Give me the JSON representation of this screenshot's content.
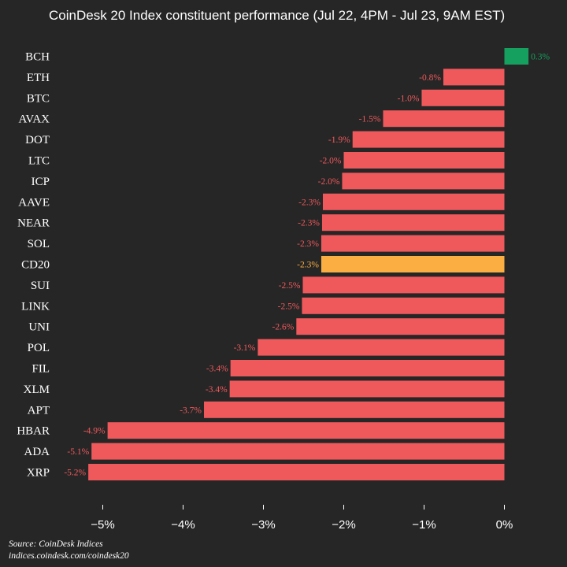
{
  "chart_data": {
    "type": "bar",
    "orientation": "horizontal",
    "title": "CoinDesk 20 Index constituent performance (Jul 22, 4PM - Jul 23, 9AM EST)",
    "xlabel": "",
    "ylabel": "",
    "xlim": [
      -5.5,
      0.5
    ],
    "xticks": [
      -5,
      -4,
      -3,
      -2,
      -1,
      0
    ],
    "xtick_labels": [
      "−5%",
      "−4%",
      "−3%",
      "−2%",
      "−1%",
      "0%"
    ],
    "grid": false,
    "legend": "none",
    "categories": [
      "BCH",
      "ETH",
      "BTC",
      "AVAX",
      "DOT",
      "LTC",
      "ICP",
      "AAVE",
      "NEAR",
      "SOL",
      "CD20",
      "SUI",
      "LINK",
      "UNI",
      "POL",
      "FIL",
      "XLM",
      "APT",
      "HBAR",
      "ADA",
      "XRP"
    ],
    "values": [
      0.3,
      -0.76,
      -1.03,
      -1.51,
      -1.89,
      -2.0,
      -2.02,
      -2.26,
      -2.27,
      -2.28,
      -2.28,
      -2.51,
      -2.52,
      -2.59,
      -3.07,
      -3.41,
      -3.42,
      -3.74,
      -4.94,
      -5.14,
      -5.18
    ],
    "labels": [
      "0.3%",
      "-0.8%",
      "-1.0%",
      "-1.5%",
      "-1.9%",
      "-2.0%",
      "-2.0%",
      "-2.3%",
      "-2.3%",
      "-2.3%",
      "-2.3%",
      "-2.5%",
      "-2.5%",
      "-2.6%",
      "-3.1%",
      "-3.4%",
      "-3.4%",
      "-3.7%",
      "-4.9%",
      "-5.1%",
      "-5.2%"
    ],
    "highlight": "CD20",
    "colors": {
      "positive": "#16a05f",
      "negative": "#f0595c",
      "highlight": "#fbae42",
      "positive_label": "#16a05f",
      "negative_label": "#f0595c",
      "highlight_label": "#fbae42"
    }
  },
  "footer": {
    "source": "Source: CoinDesk Indices",
    "url": "indices.coindesk.com/coindesk20"
  }
}
